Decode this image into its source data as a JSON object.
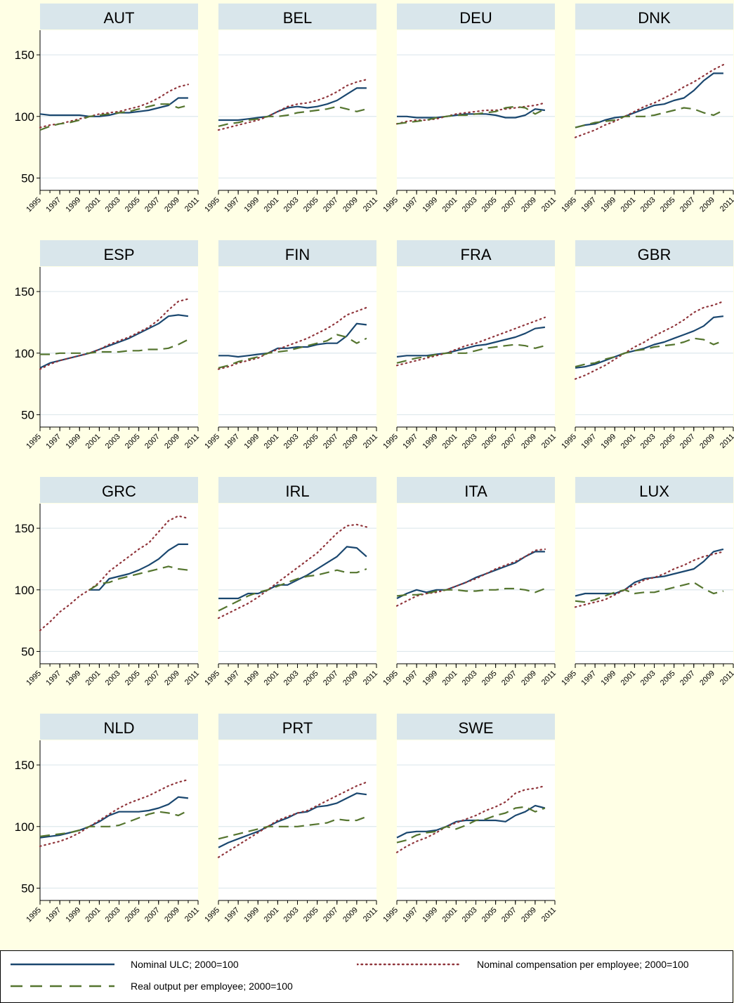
{
  "chart_data": {
    "type": "line",
    "x": [
      1995,
      1996,
      1997,
      1998,
      1999,
      2000,
      2001,
      2002,
      2003,
      2004,
      2005,
      2006,
      2007,
      2008,
      2009,
      2010
    ],
    "x_ticks": [
      "1995",
      "1997",
      "1999",
      "2001",
      "2003",
      "2005",
      "2007",
      "2009",
      "2011"
    ],
    "y_ticks": [
      "50",
      "100",
      "150"
    ],
    "ylim": [
      40,
      170
    ],
    "xlim": [
      1995,
      2011
    ],
    "series_styles": [
      {
        "key": "ulc",
        "color": "#1a476f",
        "dash": "solid"
      },
      {
        "key": "comp",
        "color": "#90353b",
        "dash": "dotted"
      },
      {
        "key": "out",
        "color": "#55752f",
        "dash": "dashed"
      }
    ],
    "legend": {
      "ulc": "Nominal ULC; 2000=100",
      "comp": "Nominal compensation per employee; 2000=100",
      "out": "Real output per employee; 2000=100"
    },
    "panels": [
      {
        "title": "AUT",
        "ulc": [
          102,
          101,
          101,
          101,
          101,
          100,
          100,
          101,
          103,
          103,
          104,
          105,
          107,
          109,
          115,
          115
        ],
        "comp": [
          91,
          93,
          94,
          96,
          98,
          100,
          102,
          103,
          104,
          106,
          108,
          111,
          115,
          120,
          124,
          126
        ],
        "out": [
          89,
          92,
          94,
          95,
          97,
          100,
          101,
          102,
          103,
          104,
          106,
          108,
          110,
          110,
          107,
          109
        ]
      },
      {
        "title": "BEL",
        "ulc": [
          97,
          97,
          97,
          98,
          99,
          100,
          104,
          107,
          108,
          107,
          108,
          110,
          113,
          118,
          123,
          123
        ],
        "comp": [
          89,
          91,
          93,
          95,
          97,
          100,
          104,
          108,
          110,
          111,
          113,
          116,
          120,
          125,
          128,
          130
        ],
        "out": [
          92,
          94,
          95,
          97,
          98,
          100,
          100,
          101,
          103,
          104,
          105,
          106,
          108,
          106,
          104,
          106
        ]
      },
      {
        "title": "DEU",
        "ulc": [
          100,
          100,
          99,
          99,
          99,
          100,
          101,
          102,
          102,
          102,
          101,
          99,
          99,
          101,
          106,
          105
        ],
        "comp": [
          94,
          96,
          97,
          97,
          98,
          100,
          102,
          103,
          104,
          105,
          105,
          106,
          107,
          108,
          109,
          111
        ],
        "out": [
          94,
          95,
          96,
          97,
          99,
          100,
          101,
          101,
          102,
          103,
          104,
          107,
          108,
          107,
          102,
          106
        ]
      },
      {
        "title": "DNK",
        "ulc": [
          91,
          93,
          94,
          97,
          99,
          100,
          103,
          106,
          109,
          110,
          113,
          115,
          121,
          129,
          135,
          135
        ],
        "comp": [
          83,
          86,
          89,
          93,
          96,
          100,
          104,
          108,
          111,
          115,
          119,
          124,
          128,
          133,
          138,
          142
        ],
        "out": [
          91,
          93,
          95,
          96,
          97,
          100,
          100,
          100,
          101,
          103,
          105,
          107,
          106,
          103,
          101,
          105
        ]
      },
      {
        "title": "ESP",
        "ulc": [
          88,
          92,
          94,
          96,
          98,
          100,
          103,
          106,
          109,
          112,
          116,
          120,
          124,
          130,
          131,
          130
        ],
        "comp": [
          87,
          91,
          94,
          96,
          98,
          100,
          103,
          107,
          110,
          113,
          117,
          121,
          127,
          135,
          142,
          144
        ],
        "out": [
          99,
          99,
          100,
          100,
          100,
          100,
          101,
          101,
          101,
          102,
          102,
          103,
          103,
          104,
          107,
          111
        ]
      },
      {
        "title": "FIN",
        "ulc": [
          98,
          98,
          97,
          98,
          99,
          100,
          104,
          104,
          105,
          105,
          107,
          108,
          108,
          114,
          124,
          123
        ],
        "comp": [
          87,
          89,
          92,
          94,
          96,
          100,
          103,
          106,
          109,
          112,
          116,
          120,
          125,
          131,
          134,
          137
        ],
        "out": [
          88,
          90,
          93,
          95,
          97,
          100,
          101,
          102,
          104,
          106,
          108,
          110,
          115,
          113,
          108,
          112
        ]
      },
      {
        "title": "FRA",
        "ulc": [
          97,
          98,
          98,
          98,
          99,
          100,
          102,
          104,
          106,
          107,
          109,
          111,
          113,
          116,
          120,
          121
        ],
        "comp": [
          90,
          92,
          94,
          96,
          98,
          100,
          103,
          106,
          108,
          111,
          114,
          117,
          120,
          123,
          126,
          129
        ],
        "out": [
          92,
          94,
          96,
          97,
          99,
          100,
          100,
          100,
          102,
          104,
          105,
          106,
          107,
          106,
          104,
          106
        ]
      },
      {
        "title": "GBR",
        "ulc": [
          88,
          89,
          91,
          94,
          97,
          100,
          102,
          104,
          107,
          109,
          112,
          115,
          118,
          122,
          129,
          130
        ],
        "comp": [
          79,
          82,
          86,
          90,
          95,
          100,
          105,
          109,
          114,
          118,
          122,
          127,
          133,
          137,
          139,
          142
        ],
        "out": [
          89,
          91,
          92,
          95,
          97,
          100,
          102,
          103,
          105,
          106,
          107,
          109,
          112,
          111,
          107,
          110
        ]
      },
      {
        "title": "GRC",
        "ulc": [
          null,
          null,
          null,
          null,
          null,
          100,
          100,
          109,
          111,
          113,
          116,
          120,
          125,
          132,
          137,
          137
        ],
        "comp": [
          67,
          74,
          82,
          88,
          95,
          100,
          106,
          115,
          121,
          127,
          133,
          138,
          147,
          156,
          160,
          158
        ],
        "out": [
          null,
          null,
          null,
          null,
          null,
          100,
          105,
          106,
          109,
          111,
          113,
          115,
          117,
          119,
          117,
          116
        ]
      },
      {
        "title": "IRL",
        "ulc": [
          93,
          93,
          93,
          97,
          97,
          100,
          104,
          104,
          108,
          112,
          117,
          122,
          127,
          135,
          134,
          127
        ],
        "comp": [
          77,
          81,
          85,
          89,
          94,
          100,
          106,
          112,
          118,
          124,
          130,
          138,
          146,
          152,
          153,
          151
        ],
        "out": [
          83,
          87,
          91,
          95,
          98,
          100,
          103,
          106,
          109,
          111,
          112,
          114,
          116,
          114,
          114,
          117
        ]
      },
      {
        "title": "ITA",
        "ulc": [
          93,
          97,
          100,
          98,
          100,
          100,
          103,
          106,
          110,
          113,
          116,
          119,
          122,
          127,
          131,
          131
        ],
        "comp": [
          87,
          91,
          95,
          97,
          98,
          100,
          103,
          106,
          109,
          113,
          117,
          120,
          123,
          127,
          132,
          133
        ],
        "out": [
          95,
          96,
          96,
          97,
          99,
          100,
          100,
          99,
          99,
          100,
          100,
          101,
          101,
          100,
          98,
          101
        ]
      },
      {
        "title": "LUX",
        "ulc": [
          95,
          97,
          97,
          97,
          97,
          100,
          106,
          109,
          110,
          111,
          113,
          115,
          117,
          123,
          131,
          133
        ],
        "comp": [
          86,
          88,
          90,
          92,
          96,
          100,
          104,
          108,
          110,
          113,
          117,
          120,
          124,
          127,
          129,
          131
        ],
        "out": [
          91,
          90,
          92,
          95,
          98,
          100,
          97,
          98,
          98,
          100,
          102,
          104,
          106,
          101,
          97,
          99
        ]
      },
      {
        "title": "NLD",
        "ulc": [
          91,
          92,
          93,
          95,
          97,
          100,
          104,
          109,
          112,
          112,
          112,
          113,
          115,
          118,
          124,
          123
        ],
        "comp": [
          84,
          86,
          88,
          91,
          95,
          100,
          105,
          110,
          115,
          119,
          122,
          125,
          129,
          133,
          136,
          138
        ],
        "out": [
          92,
          93,
          94,
          95,
          97,
          100,
          100,
          100,
          101,
          104,
          107,
          110,
          112,
          111,
          109,
          113
        ]
      },
      {
        "title": "PRT",
        "ulc": [
          83,
          87,
          90,
          93,
          96,
          100,
          104,
          107,
          111,
          112,
          116,
          117,
          119,
          123,
          127,
          126
        ],
        "comp": [
          75,
          80,
          85,
          90,
          95,
          100,
          105,
          108,
          111,
          113,
          117,
          121,
          125,
          129,
          133,
          136
        ],
        "out": [
          90,
          92,
          94,
          96,
          98,
          100,
          100,
          100,
          100,
          101,
          102,
          103,
          106,
          105,
          105,
          108
        ]
      },
      {
        "title": "SWE",
        "ulc": [
          91,
          95,
          96,
          96,
          97,
          100,
          104,
          105,
          105,
          105,
          105,
          104,
          109,
          112,
          117,
          115
        ],
        "comp": [
          79,
          84,
          88,
          91,
          95,
          100,
          103,
          106,
          109,
          113,
          116,
          120,
          127,
          130,
          131,
          133
        ],
        "out": [
          87,
          89,
          93,
          95,
          96,
          100,
          98,
          101,
          105,
          106,
          109,
          111,
          115,
          116,
          112,
          115
        ]
      }
    ]
  }
}
